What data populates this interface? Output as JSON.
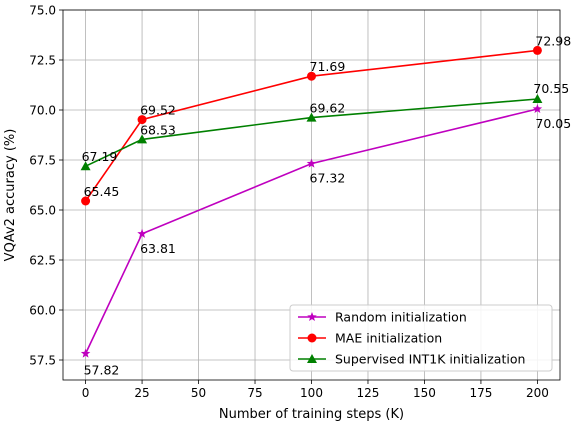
{
  "chart_data": {
    "type": "line",
    "title": "",
    "xlabel": "Number of training steps (K)",
    "ylabel": "VQAv2 accuracy (%)",
    "xlim": [
      -10,
      210
    ],
    "ylim": [
      56.5,
      75.0
    ],
    "x_ticks": [
      0,
      25,
      50,
      75,
      100,
      125,
      150,
      175,
      200
    ],
    "y_ticks": [
      57.5,
      60.0,
      62.5,
      65.0,
      67.5,
      70.0,
      72.5,
      75.0
    ],
    "x_tick_labels": [
      "0",
      "25",
      "50",
      "75",
      "100",
      "125",
      "150",
      "175",
      "200"
    ],
    "y_tick_labels": [
      "57.5",
      "60.0",
      "62.5",
      "65.0",
      "67.5",
      "70.0",
      "72.5",
      "75.0"
    ],
    "grid": true,
    "legend_position": "bottom-right",
    "series": [
      {
        "name": "Random initialization",
        "color": "#bf00bf",
        "marker": "star",
        "x": [
          0,
          25,
          100,
          200
        ],
        "values": [
          57.82,
          63.81,
          67.32,
          70.05
        ],
        "labels": [
          "57.82",
          "63.81",
          "67.32",
          "70.05"
        ]
      },
      {
        "name": "MAE initialization",
        "color": "#ff0000",
        "marker": "circle",
        "x": [
          0,
          25,
          100,
          200
        ],
        "values": [
          65.45,
          69.52,
          71.69,
          72.98
        ],
        "labels": [
          "65.45",
          "69.52",
          "71.69",
          "72.98"
        ]
      },
      {
        "name": "Supervised INT1K initialization",
        "color": "#008000",
        "marker": "triangle",
        "x": [
          0,
          25,
          100,
          200
        ],
        "values": [
          67.19,
          68.53,
          69.62,
          70.55
        ],
        "labels": [
          "67.19",
          "68.53",
          "69.62",
          "70.55"
        ]
      }
    ]
  }
}
